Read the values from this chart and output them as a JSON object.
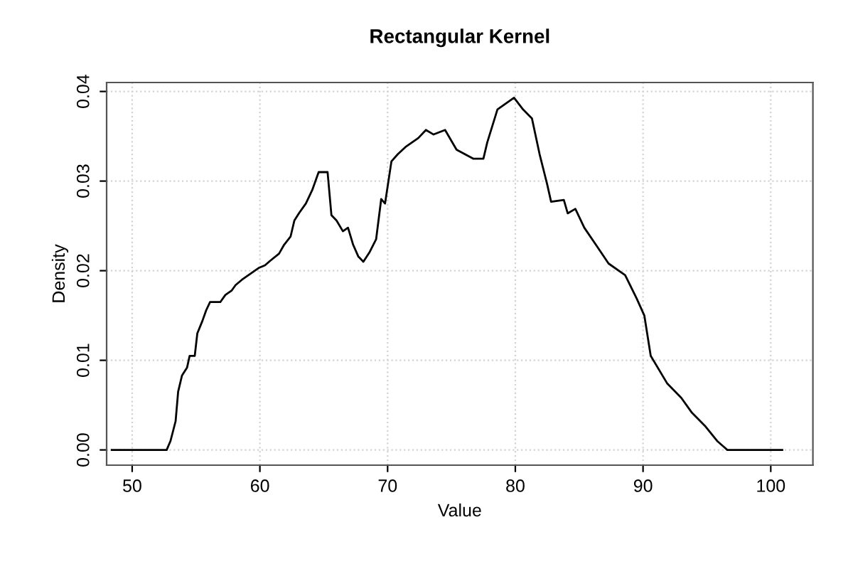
{
  "chart_data": {
    "type": "line",
    "title": "Rectangular Kernel",
    "xlabel": "Value",
    "ylabel": "Density",
    "x": [
      48.4,
      52.7,
      53.0,
      53.4,
      53.6,
      53.9,
      54.3,
      54.5,
      54.9,
      55.1,
      55.5,
      55.8,
      56.1,
      56.9,
      57.3,
      57.8,
      58.1,
      58.6,
      59.3,
      59.9,
      60.4,
      60.8,
      61.5,
      61.9,
      62.4,
      62.7,
      63.1,
      63.6,
      64.1,
      64.6,
      65.3,
      65.6,
      66.0,
      66.5,
      66.9,
      67.3,
      67.7,
      68.1,
      68.6,
      69.1,
      69.5,
      69.8,
      70.3,
      70.8,
      71.4,
      71.9,
      72.4,
      73.0,
      73.6,
      74.5,
      75.4,
      76.7,
      77.5,
      77.8,
      78.6,
      79.9,
      80.6,
      81.3,
      81.9,
      82.5,
      82.8,
      83.8,
      84.1,
      84.7,
      85.4,
      86.4,
      87.3,
      88.6,
      89.5,
      90.1,
      90.6,
      91.9,
      93.0,
      93.8,
      94.9,
      95.8,
      96.6,
      100.9
    ],
    "series": [
      {
        "color": "#000000",
        "values": [
          0,
          0,
          0.001,
          0.0032,
          0.0065,
          0.0083,
          0.0092,
          0.0105,
          0.0105,
          0.013,
          0.0144,
          0.0156,
          0.0165,
          0.0165,
          0.0173,
          0.0178,
          0.0184,
          0.019,
          0.0197,
          0.0203,
          0.0206,
          0.0211,
          0.0219,
          0.0229,
          0.0238,
          0.0256,
          0.0265,
          0.0275,
          0.029,
          0.031,
          0.031,
          0.0262,
          0.0256,
          0.0244,
          0.0248,
          0.0229,
          0.0216,
          0.021,
          0.0221,
          0.0235,
          0.028,
          0.0275,
          0.0322,
          0.033,
          0.0338,
          0.0343,
          0.0348,
          0.0357,
          0.0352,
          0.0357,
          0.0335,
          0.0325,
          0.0325,
          0.0343,
          0.038,
          0.0393,
          0.038,
          0.037,
          0.033,
          0.0296,
          0.0277,
          0.0279,
          0.0264,
          0.0269,
          0.0248,
          0.0227,
          0.0208,
          0.0195,
          0.0169,
          0.015,
          0.0105,
          0.0074,
          0.0058,
          0.0042,
          0.0026,
          0.001,
          0,
          0
        ]
      }
    ],
    "xlim": [
      48.0,
      103.3
    ],
    "ylim": [
      -0.0017,
      0.041
    ],
    "xticks": [
      50,
      60,
      70,
      80,
      90,
      100
    ],
    "yticks": [
      {
        "value": 0,
        "label": "0.00"
      },
      {
        "value": 0.01,
        "label": "0.01"
      },
      {
        "value": 0.02,
        "label": "0.02"
      },
      {
        "value": 0.03,
        "label": "0.03"
      },
      {
        "value": 0.04,
        "label": "0.04"
      }
    ],
    "grid": true,
    "marker": "none",
    "line_style": "solid",
    "legend": false
  }
}
